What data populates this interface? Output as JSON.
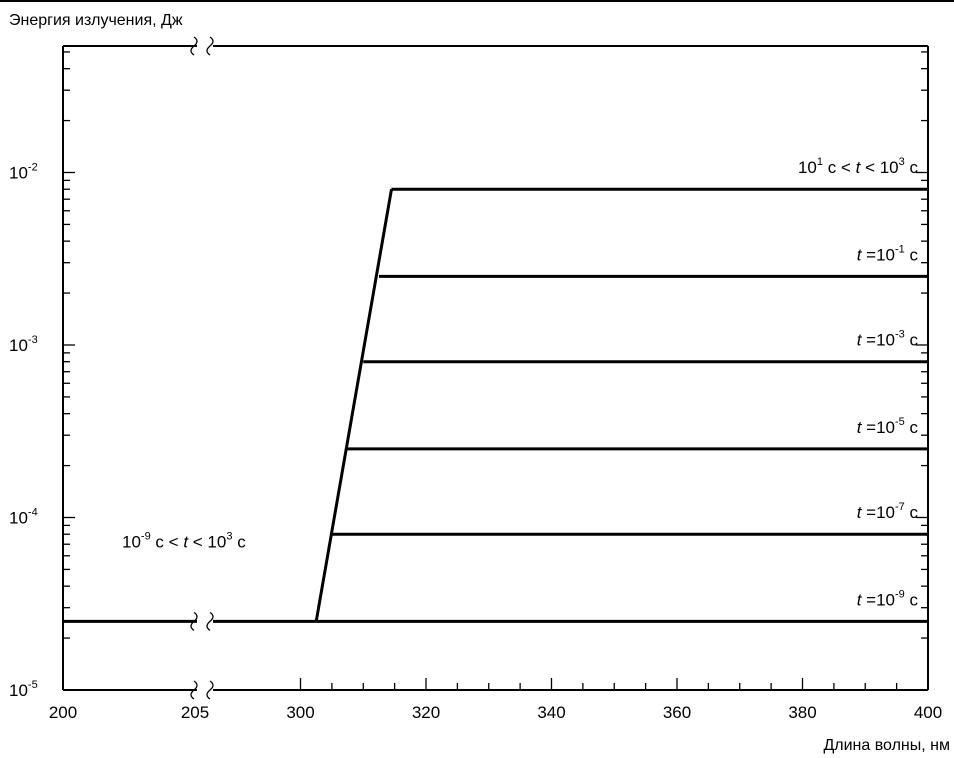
{
  "chart_data": {
    "type": "line",
    "ylabel": "Энергия излучения, Дж",
    "xlabel": "Длина волны, нм",
    "y_scale": "log",
    "ylim": [
      1e-05,
      0.05
    ],
    "grid": false,
    "x_axis_break": "205–300",
    "x_tick_labels": [
      "200",
      "205",
      "300",
      "320",
      "340",
      "360",
      "380",
      "400"
    ],
    "y_tick_labels": [
      {
        "base": "10",
        "exp": "-5",
        "value": 1e-05
      },
      {
        "base": "10",
        "exp": "-4",
        "value": 0.0001
      },
      {
        "base": "10",
        "exp": "-3",
        "value": 0.001
      },
      {
        "base": "10",
        "exp": "-2",
        "value": 0.01
      }
    ],
    "series": [
      {
        "label_parts": [
          "10",
          "-9",
          " с < ",
          "t",
          " < 10",
          "3",
          " с"
        ],
        "label_side": "left",
        "points": [
          [
            200,
            2.5e-05
          ],
          [
            302.5,
            2.5e-05
          ]
        ]
      },
      {
        "label_parts": [
          "",
          "",
          "",
          "t",
          " =10",
          "-9",
          " с"
        ],
        "label_side": "right",
        "points": [
          [
            302.5,
            2.5e-05
          ],
          [
            400,
            2.5e-05
          ]
        ]
      },
      {
        "label_parts": [
          "",
          "",
          "",
          "t",
          " =10",
          "-7",
          " с"
        ],
        "label_side": "right",
        "points": [
          [
            304.8,
            8e-05
          ],
          [
            400,
            8e-05
          ]
        ]
      },
      {
        "label_parts": [
          "",
          "",
          "",
          "t",
          " =10",
          "-5",
          " с"
        ],
        "label_side": "right",
        "points": [
          [
            307.5,
            0.00025
          ],
          [
            400,
            0.00025
          ]
        ]
      },
      {
        "label_parts": [
          "",
          "",
          "",
          "t",
          " =10",
          "-3",
          " с"
        ],
        "label_side": "right",
        "points": [
          [
            310,
            0.0008
          ],
          [
            400,
            0.0008
          ]
        ]
      },
      {
        "label_parts": [
          "",
          "",
          "",
          "t",
          " =10",
          "-1",
          " с"
        ],
        "label_side": "right",
        "points": [
          [
            312.5,
            0.0025
          ],
          [
            400,
            0.0025
          ]
        ]
      },
      {
        "label_parts": [
          "10",
          "1",
          " с < ",
          "t",
          " < 10",
          "3",
          " с"
        ],
        "label_side": "right",
        "points": [
          [
            314.5,
            0.008
          ],
          [
            400,
            0.008
          ]
        ]
      }
    ],
    "envelope": [
      [
        302.5,
        2.5e-05
      ],
      [
        314.5,
        0.008
      ]
    ]
  }
}
